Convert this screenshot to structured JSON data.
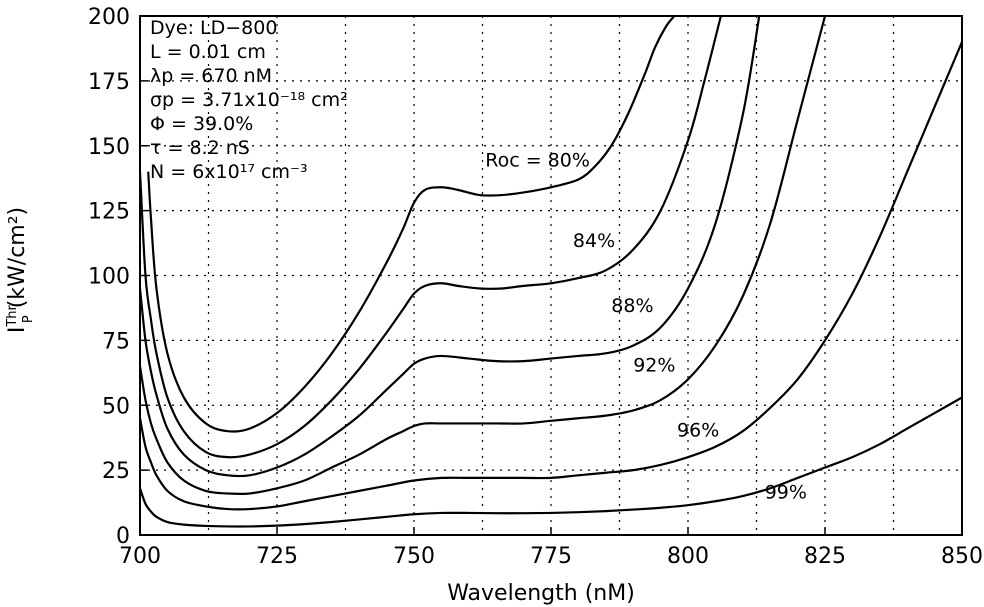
{
  "chart_data": {
    "type": "line",
    "xlabel": "Wavelength (nM)",
    "ylabel_main": "I",
    "ylabel_sup": "Thr",
    "ylabel_sub": "P",
    "ylabel_rest": " (kW/cm²)",
    "xlim": [
      700,
      850
    ],
    "ylim": [
      0,
      200
    ],
    "x_ticks": [
      "700",
      "725",
      "750",
      "775",
      "800",
      "825",
      "850"
    ],
    "y_ticks": [
      "0",
      "25",
      "50",
      "75",
      "100",
      "125",
      "150",
      "175",
      "200"
    ],
    "grid": true,
    "annotations": [
      "Dye: LD−800",
      "L = 0.01 cm",
      "λp = 670 nM",
      "σp = 3.71x10⁻¹⁸ cm²",
      "Φ = 39.0%",
      "τ = 8.2 nS",
      "N = 6x10¹⁷ cm⁻³"
    ],
    "series": [
      {
        "name": "Roc = 80%",
        "label_at": [
          763,
          142
        ],
        "x": [
          701.5,
          702,
          703,
          705,
          708,
          712,
          716,
          720,
          725,
          730,
          735,
          740,
          745,
          748,
          750,
          752,
          755,
          758,
          762,
          766,
          770,
          775,
          780,
          783,
          786,
          789,
          792,
          794,
          796,
          797.5
        ],
        "y": [
          140,
          122,
          95,
          70,
          53,
          43,
          40,
          41,
          47,
          57,
          70,
          86,
          105,
          118,
          128,
          133,
          134,
          133,
          131,
          131,
          132,
          134,
          137,
          142,
          150,
          162,
          177,
          188,
          196,
          200
        ]
      },
      {
        "name": "84%",
        "label_at": [
          779,
          111
        ],
        "x": [
          700,
          701,
          702,
          703,
          705,
          708,
          712,
          716,
          720,
          725,
          730,
          735,
          740,
          745,
          748,
          750,
          752,
          755,
          758,
          762,
          766,
          770,
          775,
          780,
          785,
          790,
          795,
          800,
          803,
          806
        ],
        "y": [
          140,
          100,
          83,
          70,
          53,
          40,
          32,
          30,
          31,
          35,
          42,
          52,
          64,
          78,
          87,
          93,
          96,
          97,
          96,
          95,
          95,
          96,
          97,
          99,
          102,
          110,
          125,
          152,
          175,
          200
        ]
      },
      {
        "name": "88%",
        "label_at": [
          786,
          86
        ],
        "x": [
          700,
          701,
          702,
          703,
          705,
          708,
          712,
          716,
          720,
          725,
          730,
          735,
          740,
          745,
          748,
          750,
          752,
          755,
          760,
          765,
          770,
          775,
          780,
          785,
          790,
          795,
          800,
          805,
          810,
          813
        ],
        "y": [
          95,
          75,
          63,
          54,
          41,
          31,
          25,
          23,
          23,
          26,
          31,
          38,
          46,
          56,
          62,
          66,
          68,
          69,
          68,
          67,
          67,
          68,
          69,
          70,
          73,
          80,
          95,
          120,
          162,
          200
        ]
      },
      {
        "name": "92%",
        "label_at": [
          790,
          63
        ],
        "x": [
          700,
          701,
          702,
          703,
          705,
          708,
          712,
          716,
          720,
          725,
          730,
          735,
          740,
          745,
          748,
          750,
          752,
          755,
          760,
          765,
          770,
          775,
          780,
          785,
          790,
          795,
          800,
          805,
          810,
          815,
          820,
          825
        ],
        "y": [
          65,
          52,
          43,
          37,
          28,
          21,
          17,
          16,
          16,
          18,
          21,
          26,
          31,
          37,
          40,
          42,
          43,
          43,
          43,
          43,
          43,
          44,
          45,
          46,
          48,
          52,
          60,
          73,
          92,
          120,
          160,
          200
        ]
      },
      {
        "name": "96%",
        "label_at": [
          798,
          38
        ],
        "x": [
          700,
          701,
          702,
          703,
          705,
          708,
          712,
          716,
          720,
          725,
          730,
          735,
          740,
          745,
          750,
          755,
          760,
          765,
          770,
          775,
          780,
          785,
          790,
          795,
          800,
          805,
          810,
          815,
          820,
          825,
          830,
          835,
          840,
          845,
          850
        ],
        "y": [
          45,
          34,
          28,
          23,
          17,
          13,
          11,
          10,
          10,
          11,
          13,
          15,
          17,
          19,
          21,
          22,
          22,
          22,
          22,
          22,
          23,
          24,
          25,
          27,
          30,
          34,
          40,
          49,
          60,
          75,
          93,
          115,
          140,
          165,
          190
        ]
      },
      {
        "name": "99%",
        "label_at": [
          814,
          14
        ],
        "x": [
          700,
          701,
          702,
          703,
          705,
          708,
          712,
          716,
          720,
          725,
          730,
          735,
          740,
          745,
          750,
          755,
          760,
          765,
          770,
          775,
          780,
          785,
          790,
          795,
          800,
          805,
          810,
          815,
          820,
          825,
          830,
          835,
          840,
          845,
          850
        ],
        "y": [
          18,
          12,
          9,
          7,
          5,
          4,
          3.5,
          3.3,
          3.3,
          3.6,
          4.2,
          5,
          6,
          7,
          8,
          8.5,
          8.5,
          8.4,
          8.4,
          8.5,
          8.8,
          9.2,
          9.8,
          10.5,
          11.5,
          13,
          15,
          18,
          22,
          26,
          30,
          35,
          41,
          47,
          53
        ]
      }
    ]
  }
}
